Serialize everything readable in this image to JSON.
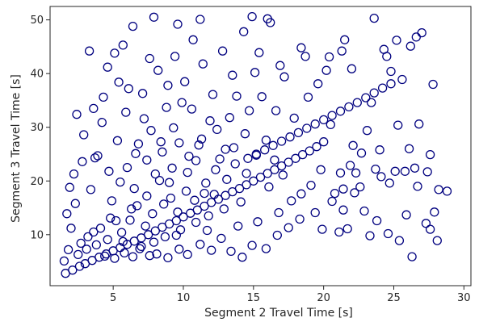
{
  "chart_data": {
    "type": "scatter",
    "title": "",
    "xlabel": "Segment 2 Travel Time [s]",
    "ylabel": "Segment 3 Travel Time [s]",
    "xlim": [
      0.5,
      30.5
    ],
    "ylim": [
      0.5,
      52.5
    ],
    "xticks": [
      5,
      10,
      15,
      20,
      25,
      30
    ],
    "yticks": [
      10,
      20,
      30,
      40,
      50
    ],
    "xtick_labels": [
      "5",
      "10",
      "15",
      "20",
      "25",
      "30"
    ],
    "ytick_labels": [
      "10",
      "20",
      "30",
      "40",
      "50"
    ],
    "grid": false,
    "marker": "open-circle",
    "marker_color": "#00007f",
    "series": [
      {
        "name": "",
        "points": [
          [
            1.6,
            2.8
          ],
          [
            2.1,
            3.4
          ],
          [
            2.6,
            4.1
          ],
          [
            3.0,
            4.6
          ],
          [
            3.5,
            5.2
          ],
          [
            4.0,
            5.8
          ],
          [
            4.5,
            6.4
          ],
          [
            5.0,
            7.0
          ],
          [
            5.5,
            7.6
          ],
          [
            6.0,
            8.2
          ],
          [
            6.5,
            8.8
          ],
          [
            7.0,
            9.4
          ],
          [
            7.5,
            10.0
          ],
          [
            8.0,
            10.7
          ],
          [
            8.5,
            11.4
          ],
          [
            9.0,
            12.0
          ],
          [
            9.5,
            12.6
          ],
          [
            10.0,
            13.3
          ],
          [
            10.5,
            14.0
          ],
          [
            11.0,
            14.6
          ],
          [
            11.5,
            15.3
          ],
          [
            12.0,
            16.0
          ],
          [
            12.5,
            16.6
          ],
          [
            13.0,
            17.3
          ],
          [
            13.5,
            18.0
          ],
          [
            14.0,
            18.6
          ],
          [
            14.5,
            19.3
          ],
          [
            15.0,
            20.0
          ],
          [
            15.5,
            20.7
          ],
          [
            16.0,
            21.4
          ],
          [
            16.5,
            22.1
          ],
          [
            17.0,
            22.8
          ],
          [
            17.5,
            23.5
          ],
          [
            18.0,
            24.2
          ],
          [
            18.5,
            24.9
          ],
          [
            19.0,
            25.6
          ],
          [
            19.5,
            26.4
          ],
          [
            20.0,
            27.3
          ],
          [
            14.6,
            24.2
          ],
          [
            15.2,
            25.0
          ],
          [
            15.8,
            25.8
          ],
          [
            16.4,
            26.6
          ],
          [
            17.0,
            27.4
          ],
          [
            17.6,
            28.2
          ],
          [
            18.2,
            29.0
          ],
          [
            18.8,
            29.8
          ],
          [
            19.4,
            30.6
          ],
          [
            20.0,
            31.4
          ],
          [
            20.6,
            32.2
          ],
          [
            21.2,
            33.0
          ],
          [
            21.8,
            33.8
          ],
          [
            22.4,
            34.6
          ],
          [
            23.0,
            35.5
          ],
          [
            23.6,
            36.4
          ],
          [
            24.2,
            37.3
          ],
          [
            24.8,
            38.1
          ],
          [
            2.5,
            6.3
          ],
          [
            3.8,
            8.1
          ],
          [
            4.4,
            6.0
          ],
          [
            5.2,
            12.6
          ],
          [
            5.8,
            6.6
          ],
          [
            6.3,
            14.8
          ],
          [
            6.9,
            7.4
          ],
          [
            7.4,
            17.2
          ],
          [
            7.9,
            8.6
          ],
          [
            8.3,
            20.1
          ],
          [
            8.7,
            9.6
          ],
          [
            9.2,
            22.4
          ],
          [
            9.8,
            10.9
          ],
          [
            10.4,
            24.6
          ],
          [
            10.9,
            12.3
          ],
          [
            11.3,
            27.8
          ],
          [
            11.8,
            13.5
          ],
          [
            12.4,
            29.6
          ],
          [
            12.9,
            14.8
          ],
          [
            13.6,
            26.2
          ],
          [
            14.1,
            16.1
          ],
          [
            15.3,
            12.4
          ],
          [
            16.1,
            18.9
          ],
          [
            16.8,
            14.1
          ],
          [
            17.7,
            16.3
          ],
          [
            18.4,
            17.6
          ],
          [
            19.1,
            19.2
          ],
          [
            19.8,
            22.1
          ],
          [
            21.4,
            14.6
          ],
          [
            22.2,
            17.8
          ],
          [
            3.2,
            9.6
          ],
          [
            4.1,
            11.2
          ],
          [
            4.8,
            13.1
          ],
          [
            5.6,
            10.4
          ],
          [
            6.2,
            12.7
          ],
          [
            6.7,
            15.4
          ],
          [
            7.3,
            11.6
          ],
          [
            7.8,
            13.9
          ],
          [
            8.6,
            15.7
          ],
          [
            9.1,
            16.8
          ],
          [
            9.6,
            14.2
          ],
          [
            10.2,
            18.1
          ],
          [
            10.8,
            16.4
          ],
          [
            11.6,
            19.6
          ],
          [
            12.2,
            17.5
          ],
          [
            13.1,
            20.3
          ],
          [
            2.0,
            11.2
          ],
          [
            2.3,
            15.8
          ],
          [
            2.8,
            23.6
          ],
          [
            3.4,
            18.4
          ],
          [
            3.9,
            24.7
          ],
          [
            4.2,
            30.9
          ],
          [
            4.7,
            21.8
          ],
          [
            5.3,
            27.5
          ],
          [
            5.9,
            32.8
          ],
          [
            6.6,
            25.1
          ],
          [
            7.1,
            36.3
          ],
          [
            7.7,
            29.4
          ],
          [
            8.2,
            40.6
          ],
          [
            8.8,
            33.7
          ],
          [
            9.4,
            43.2
          ],
          [
            10.1,
            38.5
          ],
          [
            10.7,
            46.3
          ],
          [
            11.4,
            41.8
          ],
          [
            12.1,
            36.1
          ],
          [
            12.8,
            44.2
          ],
          [
            13.5,
            39.7
          ],
          [
            14.3,
            47.8
          ],
          [
            15.4,
            43.9
          ],
          [
            16.2,
            49.5
          ],
          [
            6.4,
            48.8
          ],
          [
            7.9,
            50.5
          ],
          [
            9.6,
            49.2
          ],
          [
            11.2,
            50.1
          ],
          [
            14.9,
            50.6
          ],
          [
            16.0,
            50.2
          ],
          [
            3.3,
            44.2
          ],
          [
            4.6,
            41.2
          ],
          [
            5.7,
            45.3
          ],
          [
            6.1,
            37.2
          ],
          [
            7.6,
            42.8
          ],
          [
            9.9,
            34.6
          ],
          [
            11.9,
            31.2
          ],
          [
            13.8,
            35.8
          ],
          [
            18.4,
            44.8
          ],
          [
            18.7,
            43.2
          ],
          [
            20.4,
            43.1
          ],
          [
            21.3,
            44.2
          ],
          [
            21.5,
            46.3
          ],
          [
            22.0,
            40.9
          ],
          [
            23.6,
            50.3
          ],
          [
            24.3,
            44.5
          ],
          [
            24.5,
            43.2
          ],
          [
            25.2,
            46.2
          ],
          [
            26.2,
            45.1
          ],
          [
            26.6,
            46.8
          ],
          [
            27.0,
            47.6
          ],
          [
            24.8,
            40.4
          ],
          [
            25.6,
            38.9
          ],
          [
            23.4,
            34.6
          ],
          [
            26.8,
            30.6
          ],
          [
            25.3,
            30.4
          ],
          [
            26.1,
            26.0
          ],
          [
            27.6,
            24.9
          ],
          [
            23.1,
            29.4
          ],
          [
            22.7,
            25.2
          ],
          [
            24.0,
            25.8
          ],
          [
            22.1,
            26.6
          ],
          [
            20.5,
            30.5
          ],
          [
            21.2,
            21.5
          ],
          [
            21.9,
            22.9
          ],
          [
            23.7,
            22.2
          ],
          [
            25.8,
            21.8
          ],
          [
            26.5,
            22.4
          ],
          [
            27.4,
            21.7
          ],
          [
            28.2,
            18.4
          ],
          [
            28.8,
            18.1
          ],
          [
            27.9,
            14.2
          ],
          [
            27.3,
            12.1
          ],
          [
            27.6,
            11.0
          ],
          [
            28.1,
            8.9
          ],
          [
            26.3,
            5.9
          ],
          [
            25.4,
            8.9
          ],
          [
            24.6,
            10.2
          ],
          [
            23.3,
            9.8
          ],
          [
            25.9,
            13.7
          ],
          [
            22.3,
            21.5
          ],
          [
            21.1,
            10.5
          ],
          [
            21.7,
            11.1
          ],
          [
            19.9,
            11.0
          ],
          [
            24.1,
            20.8
          ],
          [
            26.7,
            19.0
          ],
          [
            22.6,
            18.9
          ],
          [
            21.4,
            18.5
          ],
          [
            27.8,
            38.0
          ],
          [
            25.1,
            21.8
          ],
          [
            24.7,
            19.6
          ],
          [
            20.8,
            17.7
          ],
          [
            22.9,
            14.4
          ],
          [
            23.8,
            12.6
          ],
          [
            1.7,
            13.9
          ],
          [
            1.9,
            18.8
          ],
          [
            2.2,
            21.3
          ],
          [
            2.4,
            32.4
          ],
          [
            2.9,
            28.6
          ],
          [
            3.6,
            33.5
          ],
          [
            3.7,
            24.3
          ],
          [
            4.3,
            35.6
          ],
          [
            5.1,
            43.8
          ],
          [
            5.4,
            38.4
          ],
          [
            6.8,
            26.9
          ],
          [
            7.2,
            31.6
          ],
          [
            8.4,
            27.3
          ],
          [
            8.9,
            37.8
          ],
          [
            9.3,
            29.9
          ],
          [
            10.6,
            33.4
          ],
          [
            11.1,
            26.7
          ],
          [
            12.6,
            24.1
          ],
          [
            13.3,
            31.8
          ],
          [
            14.4,
            28.8
          ],
          [
            15.6,
            35.7
          ],
          [
            16.6,
            33.1
          ],
          [
            17.2,
            39.4
          ],
          [
            17.9,
            31.7
          ],
          [
            18.9,
            35.6
          ],
          [
            19.6,
            38.1
          ],
          [
            20.2,
            40.6
          ],
          [
            16.9,
            41.5
          ],
          [
            15.1,
            40.2
          ],
          [
            14.7,
            33.1
          ],
          [
            1.5,
            5.1
          ],
          [
            1.8,
            7.2
          ],
          [
            2.7,
            8.4
          ],
          [
            3.1,
            7.3
          ],
          [
            3.6,
            10.5
          ],
          [
            4.6,
            9.1
          ],
          [
            5.1,
            5.6
          ],
          [
            5.7,
            8.7
          ],
          [
            6.4,
            5.9
          ],
          [
            7.0,
            7.8
          ],
          [
            7.6,
            6.1
          ],
          [
            8.1,
            6.4
          ],
          [
            8.9,
            5.7
          ],
          [
            9.7,
            7.3
          ],
          [
            10.3,
            6.3
          ],
          [
            11.2,
            8.2
          ],
          [
            12.0,
            7.1
          ],
          [
            12.7,
            9.3
          ],
          [
            13.4,
            6.9
          ],
          [
            14.2,
            5.8
          ],
          [
            14.9,
            8.0
          ],
          [
            15.9,
            7.4
          ],
          [
            16.7,
            9.9
          ],
          [
            17.5,
            11.3
          ],
          [
            18.3,
            12.9
          ],
          [
            19.4,
            14.1
          ],
          [
            20.6,
            16.2
          ],
          [
            13.9,
            11.6
          ],
          [
            11.7,
            10.8
          ],
          [
            9.5,
            9.9
          ],
          [
            4.9,
            16.3
          ],
          [
            5.5,
            19.8
          ],
          [
            6.0,
            22.5
          ],
          [
            6.5,
            18.6
          ],
          [
            7.4,
            23.9
          ],
          [
            8.0,
            21.3
          ],
          [
            8.5,
            25.4
          ],
          [
            9.0,
            19.7
          ],
          [
            9.7,
            27.1
          ],
          [
            10.3,
            21.6
          ],
          [
            10.9,
            23.8
          ],
          [
            11.5,
            17.7
          ],
          [
            12.3,
            22.1
          ],
          [
            13.0,
            25.9
          ],
          [
            13.7,
            23.2
          ],
          [
            14.5,
            21.4
          ],
          [
            15.2,
            24.8
          ],
          [
            15.9,
            27.6
          ],
          [
            16.5,
            23.9
          ],
          [
            17.1,
            21.1
          ]
        ]
      }
    ]
  }
}
